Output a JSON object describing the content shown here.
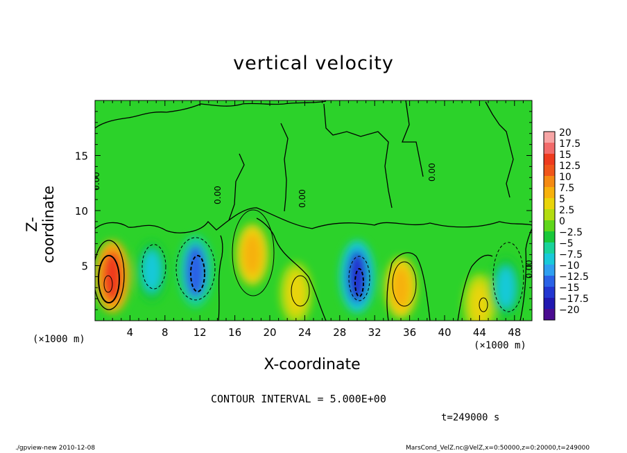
{
  "chart_data": {
    "type": "heatmap",
    "title": "vertical velocity",
    "xlabel": "X-coordinate",
    "ylabel": "Z-coordinate",
    "x_unit": "(×1000 m)",
    "xlim": [
      0,
      50
    ],
    "ylim": [
      0,
      20
    ],
    "x_ticks": [
      4,
      8,
      12,
      16,
      20,
      24,
      28,
      32,
      36,
      40,
      44,
      48
    ],
    "y_ticks": [
      5,
      10,
      15
    ],
    "colorbar": {
      "levels": [
        "20",
        "17.5",
        "15",
        "12.5",
        "10",
        "7.5",
        "5",
        "2.5",
        "0",
        "-2.5",
        "-5",
        "-7.5",
        "-10",
        "-12.5",
        "-15",
        "-17.5",
        "-20"
      ],
      "colors": [
        "#f7a5a5",
        "#f26b6b",
        "#ee3b1e",
        "#f0561a",
        "#f58a12",
        "#f7b10c",
        "#e9d40a",
        "#b3dc10",
        "#5fd61a",
        "#19c83a",
        "#19d39a",
        "#19c9d9",
        "#2f9ff0",
        "#2a62e6",
        "#2236d0",
        "#2118b0",
        "#4a0c90"
      ]
    },
    "contour_label": "0.00",
    "contour_interval_text": "CONTOUR INTERVAL = 5.000E+00",
    "cells": [
      {
        "x": 2,
        "z": 4,
        "value": 15,
        "note": "updraft max"
      },
      {
        "x": 6.5,
        "z": 4.5,
        "value": -7.5
      },
      {
        "x": 11.5,
        "z": 4.5,
        "value": -12.5
      },
      {
        "x": 18,
        "z": 6,
        "value": 7.5
      },
      {
        "x": 23,
        "z": 2.5,
        "value": 5
      },
      {
        "x": 30,
        "z": 4,
        "value": -15
      },
      {
        "x": 35,
        "z": 3,
        "value": 7.5
      },
      {
        "x": 44,
        "z": 1.5,
        "value": 5
      },
      {
        "x": 47,
        "z": 3,
        "value": -7.5
      }
    ]
  },
  "text": {
    "time": "t=249000 s",
    "footer_left": "./gpview-new   2010-12-08",
    "footer_right": "MarsCond_VelZ.nc@VelZ,x=0:50000,z=0:20000,t=249000"
  },
  "colors": {
    "background_field": "#2cd22a",
    "contour_line": "#000000"
  }
}
